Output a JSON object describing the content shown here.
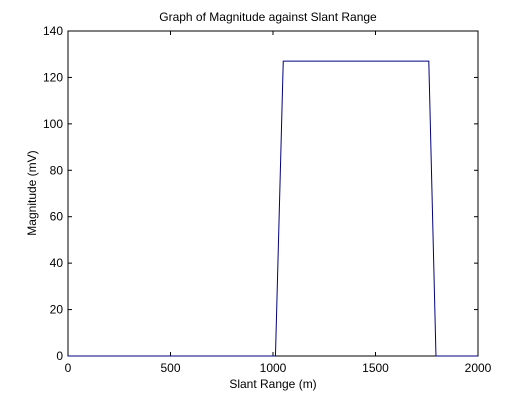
{
  "chart_data": {
    "type": "line",
    "title": "Graph of Magnitude against Slant Range",
    "xlabel": "Slant Range (m)",
    "ylabel": "Magnitude (mV)",
    "xlim": [
      0,
      2000
    ],
    "ylim": [
      0,
      140
    ],
    "xticks": [
      0,
      500,
      1000,
      1500,
      2000
    ],
    "yticks": [
      0,
      20,
      40,
      60,
      80,
      100,
      120,
      140
    ],
    "grid": false,
    "legend": "none",
    "series": [
      {
        "color": "#00007f",
        "x": [
          0,
          1012,
          1050,
          1760,
          1795,
          2000
        ],
        "y": [
          0,
          0,
          127,
          127,
          0,
          0
        ]
      }
    ]
  }
}
